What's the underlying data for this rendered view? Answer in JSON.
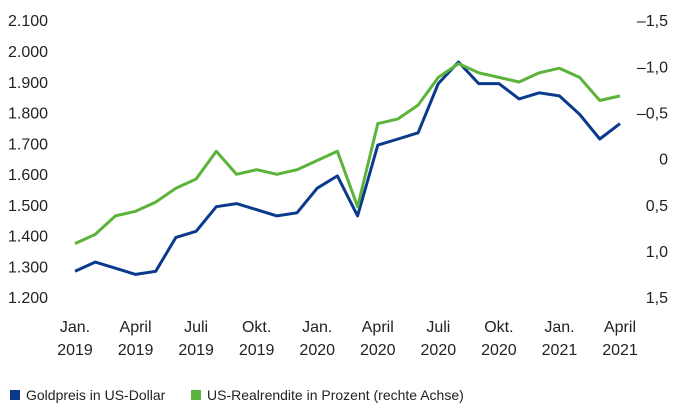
{
  "chart_data": {
    "type": "line",
    "x": [
      "2019-01",
      "2019-02",
      "2019-03",
      "2019-04",
      "2019-05",
      "2019-06",
      "2019-07",
      "2019-08",
      "2019-09",
      "2019-10",
      "2019-11",
      "2019-12",
      "2020-01",
      "2020-02",
      "2020-03",
      "2020-04",
      "2020-05",
      "2020-06",
      "2020-07",
      "2020-08",
      "2020-09",
      "2020-10",
      "2020-11",
      "2020-12",
      "2021-01",
      "2021-02",
      "2021-03",
      "2021-04"
    ],
    "series": [
      {
        "name": "Goldpreis in US-Dollar",
        "color": "#0b3a8c",
        "values": [
          1290,
          1320,
          1300,
          1280,
          1290,
          1400,
          1420,
          1500,
          1510,
          1490,
          1470,
          1480,
          1560,
          1600,
          1470,
          1700,
          1720,
          1740,
          1900,
          1970,
          1900,
          1900,
          1850,
          1870,
          1860,
          1800,
          1720,
          1770
        ]
      },
      {
        "name": "US-Realrendite in Prozent (rechte Achse)",
        "color": "#5cb33c",
        "axis": "y2",
        "values": [
          0.9,
          0.8,
          0.6,
          0.55,
          0.45,
          0.3,
          0.2,
          -0.1,
          0.15,
          0.1,
          0.15,
          0.1,
          0.0,
          -0.1,
          0.5,
          -0.4,
          -0.45,
          -0.6,
          -0.9,
          -1.05,
          -0.95,
          -0.9,
          -0.85,
          -0.95,
          -1.0,
          -0.9,
          -0.65,
          -0.7
        ]
      }
    ],
    "xticks": [
      {
        "value": "2019-01",
        "label": "Jan.\n2019"
      },
      {
        "value": "2019-04",
        "label": "April\n2019"
      },
      {
        "value": "2019-07",
        "label": "Juli\n2019"
      },
      {
        "value": "2019-10",
        "label": "Okt.\n2019"
      },
      {
        "value": "2020-01",
        "label": "Jan.\n2020"
      },
      {
        "value": "2020-04",
        "label": "April\n2020"
      },
      {
        "value": "2020-07",
        "label": "Juli\n2020"
      },
      {
        "value": "2020-10",
        "label": "Okt.\n2020"
      },
      {
        "value": "2021-01",
        "label": "Jan.\n2021"
      },
      {
        "value": "2021-04",
        "label": "April\n2021"
      }
    ],
    "ylim": [
      1200,
      2100
    ],
    "yticks": [
      {
        "value": 1200,
        "label": "1.200"
      },
      {
        "value": 1300,
        "label": "1.300"
      },
      {
        "value": 1400,
        "label": "1.400"
      },
      {
        "value": 1500,
        "label": "1.500"
      },
      {
        "value": 1600,
        "label": "1.600"
      },
      {
        "value": 1700,
        "label": "1.700"
      },
      {
        "value": 1800,
        "label": "1.800"
      },
      {
        "value": 1900,
        "label": "1.900"
      },
      {
        "value": 2000,
        "label": "2.000"
      },
      {
        "value": 2100,
        "label": "2.100"
      }
    ],
    "y2lim": [
      1.5,
      -1.5
    ],
    "y2ticks": [
      {
        "value": -1.5,
        "label": "–1,5"
      },
      {
        "value": -1.0,
        "label": "–1,0"
      },
      {
        "value": -0.5,
        "label": "–0,5"
      },
      0,
      {
        "value": 0.5,
        "label": "0,5"
      },
      {
        "value": 1.0,
        "label": "1,0"
      },
      {
        "value": 1.5,
        "label": "1,5"
      }
    ],
    "legend": "bottom-left"
  }
}
